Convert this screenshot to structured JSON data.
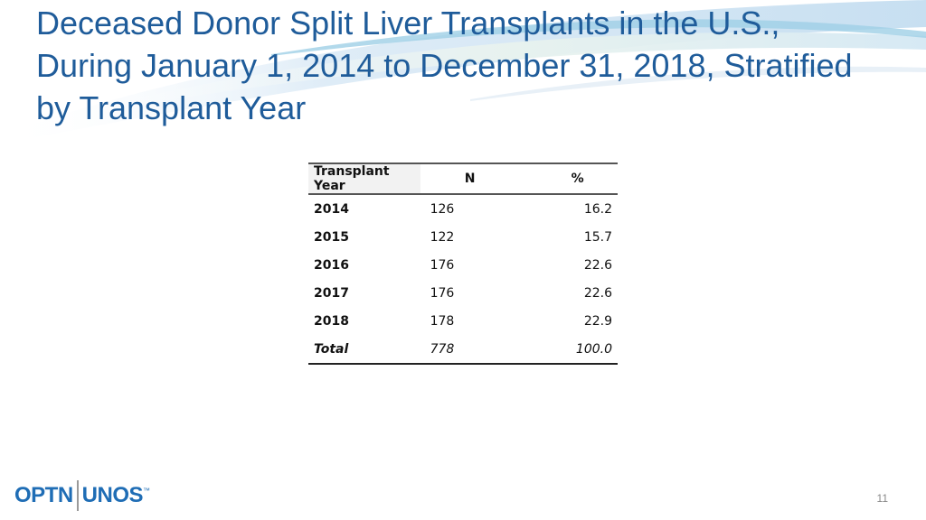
{
  "slide": {
    "title_lines": [
      "Deceased Donor Split Liver Transplants in the U.S.,",
      "During January 1, 2014 to December 31, 2018, Stratified",
      "by Transplant Year"
    ],
    "page_number": "11"
  },
  "table": {
    "headers": [
      "Transplant Year",
      "N",
      "%"
    ],
    "rows": [
      [
        "2014",
        "126",
        "16.2"
      ],
      [
        "2015",
        "122",
        "15.7"
      ],
      [
        "2016",
        "176",
        "22.6"
      ],
      [
        "2017",
        "176",
        "22.6"
      ],
      [
        "2018",
        "178",
        "22.9"
      ]
    ],
    "total": [
      "Total",
      "778",
      "100.0"
    ]
  },
  "logo": {
    "left": "OPTN",
    "right": "UNOS",
    "mark": "™"
  },
  "colors": {
    "title": "#1f5c9a",
    "logo": "#1f6db5",
    "swoosh_light": "#dbeaf6",
    "swoosh_accent": "#9fd0e6"
  }
}
